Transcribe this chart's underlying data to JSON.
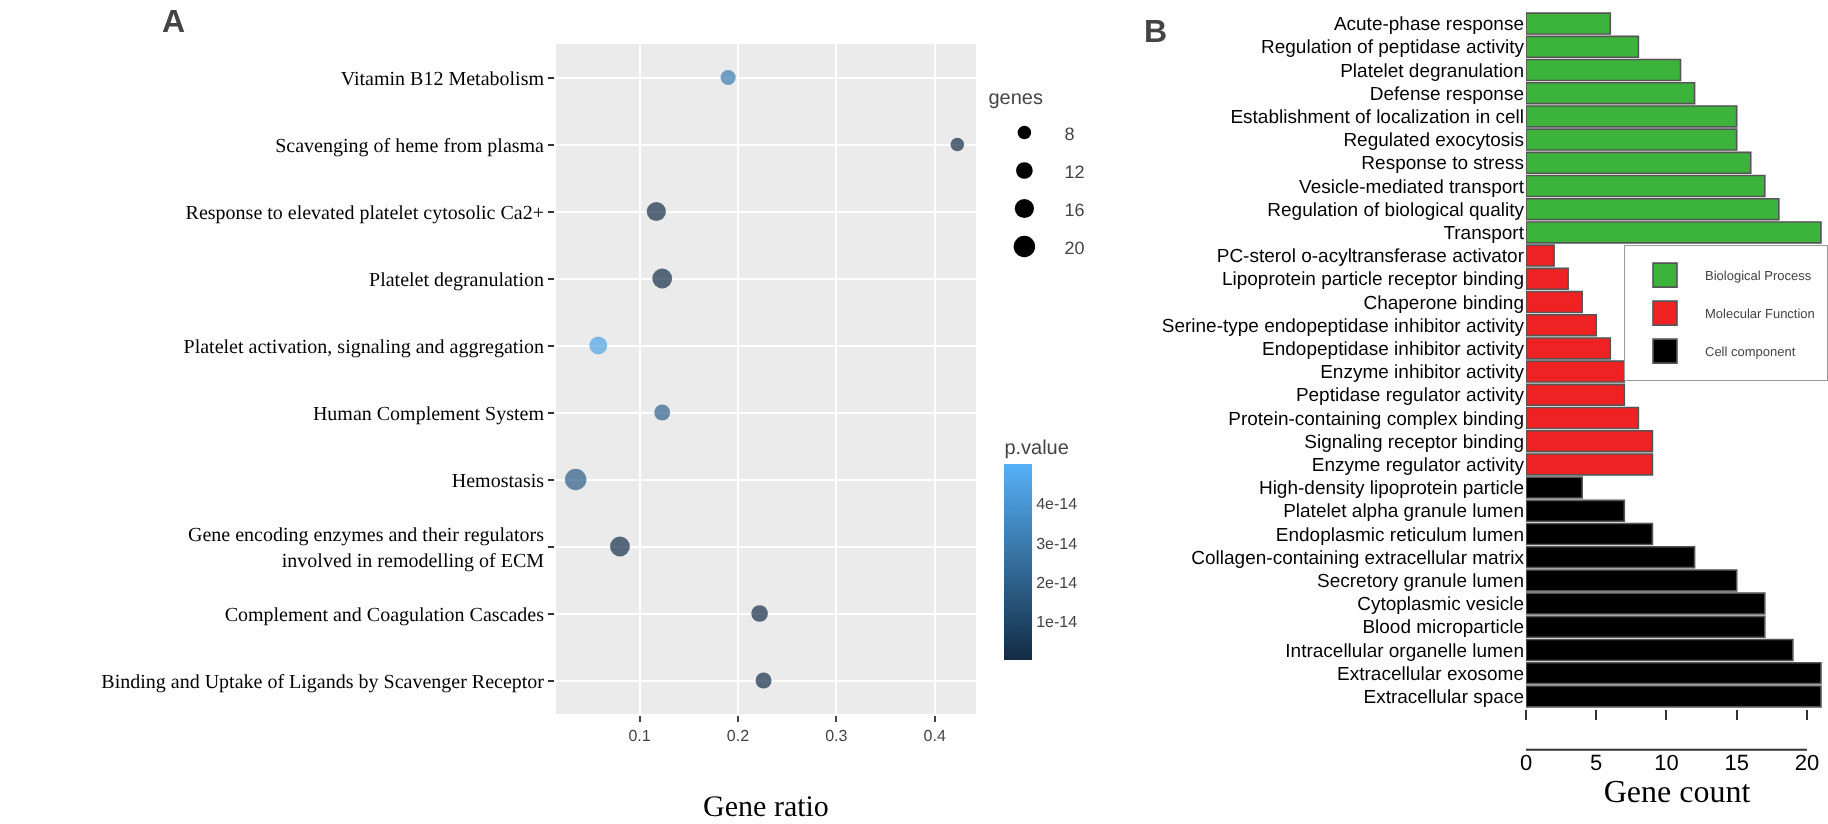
{
  "chart_data": [
    {
      "type": "bubble",
      "title": "A",
      "xlabel": "Gene ratio",
      "orientation": "horizontal",
      "categories": [
        "Vitamin B12 Metabolism",
        "Scavenging of heme from plasma",
        "Response to elevated platelet cytosolic Ca2+",
        "Platelet degranulation",
        "Platelet activation, signaling and aggregation",
        "Human Complement System",
        "Hemostasis",
        "Gene encoding enzymes and their regulators\ninvolved in remodelling of ECM",
        "Complement and Coagulation Cascades",
        "Binding and Uptake of Ligands by Scavenger Receptor"
      ],
      "values": [
        0.19,
        0.423,
        0.117,
        0.123,
        0.058,
        0.123,
        0.035,
        0.08,
        0.222,
        0.226
      ],
      "sizes": [
        10,
        8,
        16,
        17,
        14,
        11,
        20,
        17,
        12,
        11
      ],
      "size_legend": [
        8,
        12,
        16,
        20
      ],
      "legend_title": "genes",
      "cvalues": [
        3e-14,
        1e-15,
        1e-15,
        1e-15,
        4.5e-14,
        2e-14,
        1.8e-14,
        1e-15,
        1e-15,
        1e-15
      ],
      "clabel": "p.value",
      "clim": [
        0,
        5e-14
      ],
      "cticks": [
        {
          "value": 1e-14,
          "label": "1e-14"
        },
        {
          "value": 2e-14,
          "label": "2e-14"
        },
        {
          "value": 3e-14,
          "label": "3e-14"
        },
        {
          "value": 4e-14,
          "label": "4e-14"
        }
      ],
      "xlim": [
        0.015,
        0.442
      ],
      "xticks": [
        0.1,
        0.2,
        0.3,
        0.4
      ],
      "grid": true
    },
    {
      "type": "bar",
      "title": "B",
      "xlabel": "Gene count",
      "orientation": "horizontal",
      "categories": [
        "Acute-phase response",
        "Regulation of peptidase activity",
        "Platelet degranulation",
        "Defense response",
        "Establishment of localization in cell",
        "Regulated exocytosis",
        "Response to stress",
        "Vesicle-mediated transport",
        "Regulation of biological quality",
        "Transport",
        "PC-sterol o-acyltransferase activator",
        "Lipoprotein particle receptor binding",
        "Chaperone binding",
        "Serine-type endopeptidase inhibitor activity",
        "Endopeptidase inhibitor activity",
        "Enzyme inhibitor activity",
        "Peptidase regulator activity",
        "Protein-containing complex binding",
        "Signaling receptor binding",
        "Enzyme regulator activity",
        "High-density lipoprotein particle",
        "Platelet alpha granule lumen",
        "Endoplasmic reticulum lumen",
        "Collagen-containing extracellular matrix",
        "Secretory granule lumen",
        "Cytoplasmic vesicle",
        "Blood microparticle",
        "Intracellular organelle lumen",
        "Extracellular exosome",
        "Extracellular space"
      ],
      "series": [
        {
          "name": "Biological Process",
          "color": "#3cb43c",
          "values": [
            6,
            8,
            11,
            12,
            15,
            15,
            16,
            17,
            18,
            21,
            null,
            null,
            null,
            null,
            null,
            null,
            null,
            null,
            null,
            null,
            null,
            null,
            null,
            null,
            null,
            null,
            null,
            null,
            null,
            null
          ]
        },
        {
          "name": "Molecular Function",
          "color": "#ee2222",
          "values": [
            null,
            null,
            null,
            null,
            null,
            null,
            null,
            null,
            null,
            null,
            2,
            3,
            4,
            5,
            6,
            7,
            7,
            8,
            9,
            9,
            null,
            null,
            null,
            null,
            null,
            null,
            null,
            null,
            null,
            null
          ]
        },
        {
          "name": "Cell component",
          "color": "#000000",
          "values": [
            null,
            null,
            null,
            null,
            null,
            null,
            null,
            null,
            null,
            null,
            null,
            null,
            null,
            null,
            null,
            null,
            null,
            null,
            null,
            null,
            4,
            7,
            9,
            12,
            15,
            17,
            17,
            19,
            21,
            21
          ]
        }
      ],
      "xlim": [
        0,
        21.5
      ],
      "xticks": [
        0,
        5,
        10,
        15,
        20
      ],
      "legend": "right"
    }
  ]
}
